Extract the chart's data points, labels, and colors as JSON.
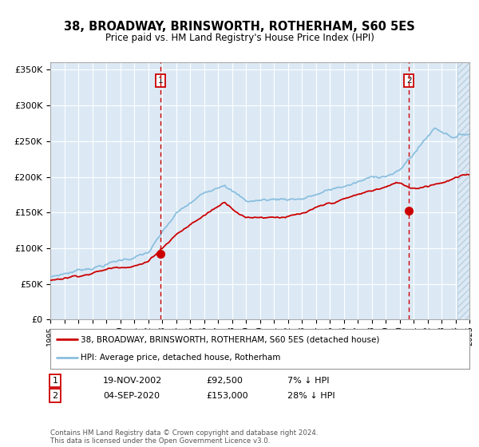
{
  "title": "38, BROADWAY, BRINSWORTH, ROTHERHAM, S60 5ES",
  "subtitle": "Price paid vs. HM Land Registry's House Price Index (HPI)",
  "legend_line1": "38, BROADWAY, BRINSWORTH, ROTHERHAM, S60 5ES (detached house)",
  "legend_line2": "HPI: Average price, detached house, Rotherham",
  "annotation1_label": "1",
  "annotation1_date": "19-NOV-2002",
  "annotation1_price": "£92,500",
  "annotation1_hpi": "7% ↓ HPI",
  "annotation2_label": "2",
  "annotation2_date": "04-SEP-2020",
  "annotation2_price": "£153,000",
  "annotation2_hpi": "28% ↓ HPI",
  "footer": "Contains HM Land Registry data © Crown copyright and database right 2024.\nThis data is licensed under the Open Government Licence v3.0.",
  "sale1_year": 2002.88,
  "sale1_price": 92500,
  "sale2_year": 2020.67,
  "sale2_price": 153000,
  "year_start": 1995,
  "year_end": 2025,
  "ylim_max": 360000,
  "bg_color": "#dce9f5",
  "grid_color": "#ffffff",
  "hpi_color": "#8bbfdf",
  "price_color": "#cc0000",
  "sale_dot_color": "#cc0000",
  "vline_color": "#cc0000",
  "annotation_box_color": "#cc0000",
  "hatch_color": "#b8cfe0"
}
